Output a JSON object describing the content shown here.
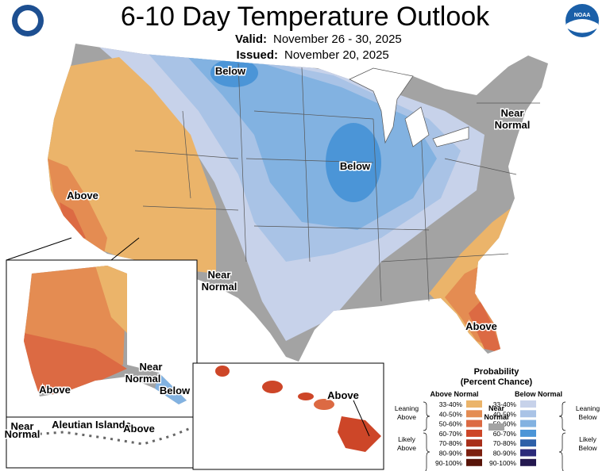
{
  "header": {
    "title": "6-10 Day Temperature Outlook",
    "valid_label": "Valid:",
    "valid_dates": "November 26 - 30, 2025",
    "issued_label": "Issued:",
    "issued_date": "November 20, 2025",
    "noaa_logo": "NOAA"
  },
  "map_labels": [
    {
      "text": "Below"
    },
    {
      "text": "Below"
    },
    {
      "text": "Near"
    },
    {
      "text": "Normal"
    },
    {
      "text": "Above"
    },
    {
      "text": "Near"
    },
    {
      "text": "Normal"
    },
    {
      "text": "Above"
    },
    {
      "text": "Above"
    },
    {
      "text": "Near"
    },
    {
      "text": "Normal"
    },
    {
      "text": "Below"
    },
    {
      "text": "Near"
    },
    {
      "text": "Normal"
    },
    {
      "text": "Aleutian Islands"
    },
    {
      "text": "Above"
    },
    {
      "text": "Above"
    }
  ],
  "legend": {
    "title": "Probability",
    "subtitle": "(Percent Chance)",
    "above_header": "Above Normal",
    "below_header": "Below Normal",
    "near_label_1": "Near",
    "near_label_2": "Normal",
    "near_color": "#a3a3a3",
    "above_items": [
      {
        "label": "33-40%",
        "color": "#ebb46a"
      },
      {
        "label": "40-50%",
        "color": "#e48c52"
      },
      {
        "label": "50-60%",
        "color": "#dc6a43"
      },
      {
        "label": "60-70%",
        "color": "#cd4628"
      },
      {
        "label": "70-80%",
        "color": "#a82f1a"
      },
      {
        "label": "80-90%",
        "color": "#7c200f"
      },
      {
        "label": "90-100%",
        "color": "#581409"
      }
    ],
    "below_items": [
      {
        "label": "33-40%",
        "color": "#c7d2ea"
      },
      {
        "label": "40-50%",
        "color": "#a9c3e6"
      },
      {
        "label": "50-60%",
        "color": "#82b2e1"
      },
      {
        "label": "60-70%",
        "color": "#4b95d7"
      },
      {
        "label": "70-80%",
        "color": "#2d60a8"
      },
      {
        "label": "80-90%",
        "color": "#2b2a7a"
      },
      {
        "label": "90-100%",
        "color": "#24184f"
      }
    ],
    "groups": [
      {
        "line1": "Leaning",
        "line2": "Above"
      },
      {
        "line1": "Likely",
        "line2": "Above"
      },
      {
        "line1": "Leaning",
        "line2": "Below"
      },
      {
        "line1": "Likely",
        "line2": "Below"
      }
    ]
  }
}
